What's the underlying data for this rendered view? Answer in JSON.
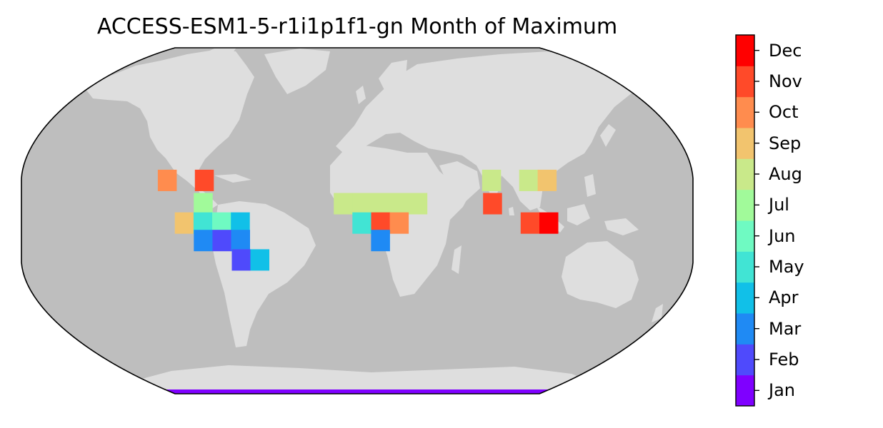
{
  "title": "ACCESS-ESM1-5-r1i1p1f1-gn Month of Maximum",
  "map": {
    "projection": "Robinson",
    "ocean_color": "#bebebe",
    "land_color": "#dedede",
    "outline_color": "#000000"
  },
  "colorbar": {
    "colormap": "rainbow",
    "labels": [
      "Jan",
      "Feb",
      "Mar",
      "Apr",
      "May",
      "Jun",
      "Jul",
      "Aug",
      "Sep",
      "Oct",
      "Nov",
      "Dec"
    ],
    "colors": [
      "#7f00ff",
      "#4f4afc",
      "#1f8af4",
      "#11c0e8",
      "#41e4d4",
      "#6ffac2",
      "#a1fa9a",
      "#c9e98a",
      "#f2c46e",
      "#ff8c4e",
      "#ff4a29",
      "#ff0000"
    ]
  },
  "chart_data": {
    "type": "heatmap",
    "title": "ACCESS-ESM1-5-r1i1p1f1-gn Month of Maximum",
    "variable": "month of maximum",
    "cells": [
      {
        "lon": -102.5,
        "lat": 21,
        "month": "Oct"
      },
      {
        "lon": -82.5,
        "lat": 21,
        "month": "Nov"
      },
      {
        "lon": -82.5,
        "lat": 9,
        "month": "Jul"
      },
      {
        "lon": -92.5,
        "lat": -1,
        "month": "Sep"
      },
      {
        "lon": -82.5,
        "lat": -1,
        "month": "May"
      },
      {
        "lon": -72.5,
        "lat": -1,
        "month": "Jun"
      },
      {
        "lon": -62.5,
        "lat": -1,
        "month": "Apr"
      },
      {
        "lon": -82.5,
        "lat": -10,
        "month": "Mar"
      },
      {
        "lon": -72.5,
        "lat": -10,
        "month": "Feb"
      },
      {
        "lon": -62.5,
        "lat": -10,
        "month": "Mar"
      },
      {
        "lon": -62.5,
        "lat": -20,
        "month": "Feb"
      },
      {
        "lon": -52.5,
        "lat": -20,
        "month": "Apr"
      },
      {
        "lon": -7.5,
        "lat": 9,
        "month": "Aug"
      },
      {
        "lon": 2.5,
        "lat": 9,
        "month": "Aug"
      },
      {
        "lon": 12.5,
        "lat": 9,
        "month": "Aug"
      },
      {
        "lon": 22.5,
        "lat": 9,
        "month": "Aug"
      },
      {
        "lon": 32.5,
        "lat": 9,
        "month": "Aug"
      },
      {
        "lon": 2.5,
        "lat": -1,
        "month": "May"
      },
      {
        "lon": 12.5,
        "lat": -1,
        "month": "Nov"
      },
      {
        "lon": 22.5,
        "lat": -1,
        "month": "Oct"
      },
      {
        "lon": 12.5,
        "lat": -10,
        "month": "Mar"
      },
      {
        "lon": 72.5,
        "lat": 21,
        "month": "Aug"
      },
      {
        "lon": 92.5,
        "lat": 21,
        "month": "Aug"
      },
      {
        "lon": 102.5,
        "lat": 21,
        "month": "Sep"
      },
      {
        "lon": 72.5,
        "lat": 9,
        "month": "Nov"
      },
      {
        "lon": 92.5,
        "lat": -1,
        "month": "Nov"
      },
      {
        "lon": 102.5,
        "lat": -1,
        "month": "Dec"
      },
      {
        "lon": "all",
        "lat": -89,
        "month": "Jan"
      }
    ]
  }
}
